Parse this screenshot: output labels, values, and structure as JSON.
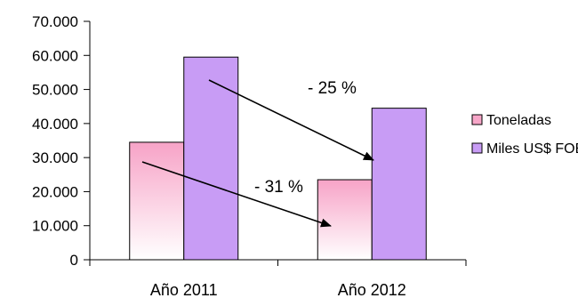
{
  "chart_data": {
    "type": "bar",
    "categories": [
      "Año 2011",
      "Año 2012"
    ],
    "series": [
      {
        "name": "Toneladas",
        "values": [
          34500,
          23500
        ],
        "color": "#f7a6c8"
      },
      {
        "name": "Miles US$ FOB",
        "values": [
          59500,
          44500
        ],
        "color": "#c89cf5"
      }
    ],
    "ylim": [
      0,
      70000
    ],
    "yticks": [
      0,
      10000,
      20000,
      30000,
      40000,
      50000,
      60000,
      70000
    ],
    "ytick_labels": [
      "0",
      "10.000",
      "20.000",
      "30.000",
      "40.000",
      "50.000",
      "60.000",
      "70.000"
    ],
    "legend_position": "right",
    "grid": false,
    "annotations": [
      {
        "text": "- 25 %",
        "series": "Miles US$ FOB"
      },
      {
        "text": "- 31 %",
        "series": "Toneladas"
      }
    ]
  }
}
